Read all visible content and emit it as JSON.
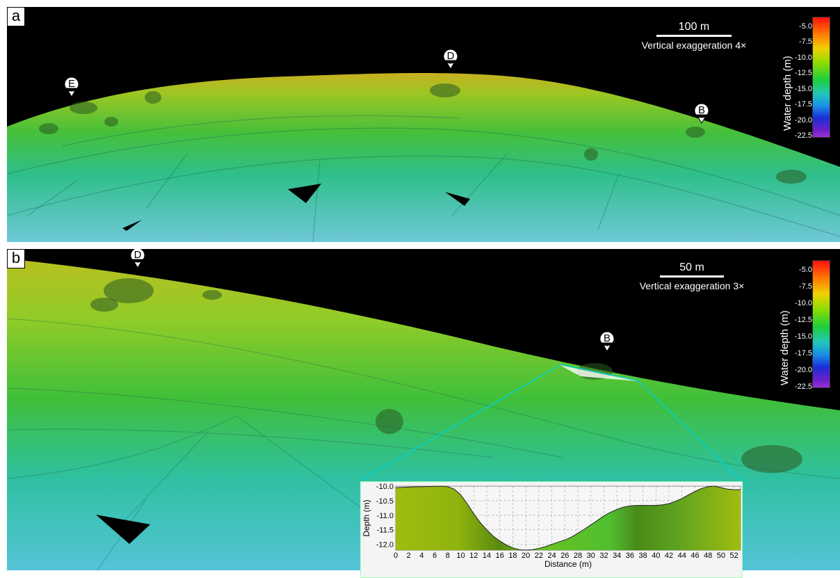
{
  "panels": [
    {
      "label": "a",
      "scale_text": "100 m",
      "exaggeration": "Vertical exaggeration 4×",
      "colorbar_title": "Water depth (m)",
      "ticks": [
        "-5.0",
        "-7.5",
        "-10.0",
        "-12.5",
        "-15.0",
        "-17.5",
        "-20.0",
        "-22.5"
      ],
      "markers": [
        "E",
        "D",
        "B"
      ]
    },
    {
      "label": "b",
      "scale_text": "50 m",
      "exaggeration": "Vertical exaggeration 3×",
      "colorbar_title": "Water depth (m)",
      "ticks": [
        "-5.0",
        "-7.5",
        "-10.0",
        "-12.5",
        "-15.0",
        "-17.5",
        "-20.0",
        "-22.5"
      ],
      "markers": [
        "D",
        "B"
      ]
    }
  ],
  "colors": {
    "shallow": "#c8b020",
    "mid": "#3fbf3a",
    "deep": "#35b5c8",
    "profile_outline": "#00d4d4"
  },
  "chart_data": {
    "type": "area",
    "xlabel": "Distance (m)",
    "ylabel": "Depth (m)",
    "xlim": [
      0,
      53
    ],
    "ylim": [
      -12.2,
      -10.0
    ],
    "x_ticks": [
      0,
      2,
      4,
      6,
      8,
      10,
      12,
      14,
      16,
      18,
      20,
      22,
      24,
      26,
      28,
      30,
      32,
      34,
      36,
      38,
      40,
      42,
      44,
      46,
      48,
      50,
      52
    ],
    "y_ticks": [
      "-10.0",
      "-10.5",
      "-11.0",
      "-11.5",
      "-12.0"
    ],
    "grid": true,
    "series": [
      {
        "x": [
          0,
          2,
          4,
          6,
          7,
          8,
          9,
          10,
          11,
          12,
          13,
          14,
          15,
          16,
          17,
          18,
          19,
          20,
          21,
          22,
          23,
          24,
          25,
          26,
          27,
          28,
          29,
          30,
          31,
          32,
          33,
          34,
          35,
          36,
          37,
          38,
          39,
          40,
          41,
          42,
          43,
          44,
          45,
          46,
          47,
          48,
          49,
          50,
          51,
          52,
          53
        ],
        "y": [
          -10.05,
          -10.03,
          -10.02,
          -10.01,
          -10.0,
          -10.02,
          -10.1,
          -10.3,
          -10.6,
          -10.95,
          -11.25,
          -11.5,
          -11.72,
          -11.88,
          -12.02,
          -12.12,
          -12.18,
          -12.2,
          -12.18,
          -12.14,
          -12.08,
          -12.0,
          -11.92,
          -11.85,
          -11.75,
          -11.62,
          -11.48,
          -11.33,
          -11.18,
          -11.02,
          -10.9,
          -10.8,
          -10.72,
          -10.68,
          -10.66,
          -10.66,
          -10.66,
          -10.66,
          -10.64,
          -10.6,
          -10.52,
          -10.42,
          -10.3,
          -10.18,
          -10.08,
          -10.02,
          -10.0,
          -10.05,
          -10.1,
          -10.12,
          -10.12
        ]
      }
    ]
  }
}
